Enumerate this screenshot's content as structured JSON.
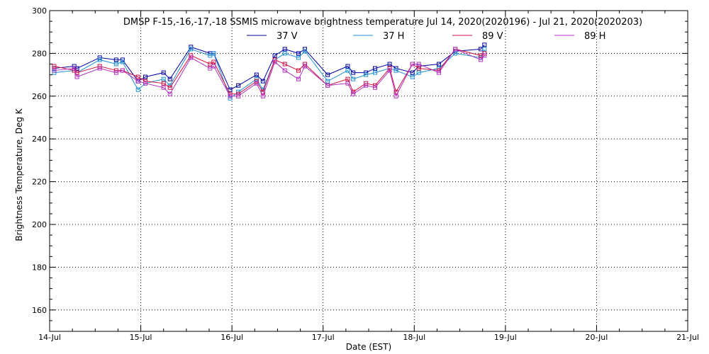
{
  "chart_data": {
    "type": "line",
    "title": "DMSP F-15,-16,-17,-18 SSMIS microwave brightness temperature Jul 14, 2020(2020196) - Jul 21, 2020(2020203)",
    "xlabel": "Date (EST)",
    "ylabel": "Brightness Temperature, Deg K",
    "xlim": [
      0,
      7
    ],
    "ylim": [
      150,
      300
    ],
    "x_ticks": [
      0,
      1,
      2,
      3,
      4,
      5,
      6,
      7
    ],
    "x_tick_labels": [
      "14-Jul",
      "15-Jul",
      "16-Jul",
      "17-Jul",
      "18-Jul",
      "19-Jul",
      "20-Jul",
      "21-Jul"
    ],
    "y_ticks": [
      160,
      180,
      200,
      220,
      240,
      260,
      280,
      300
    ],
    "grid": true,
    "legend_position": "top-center",
    "x": [
      0.05,
      0.27,
      0.3,
      0.55,
      0.73,
      0.8,
      0.97,
      1.05,
      1.25,
      1.32,
      1.55,
      1.76,
      1.8,
      1.98,
      2.07,
      2.27,
      2.34,
      2.47,
      2.58,
      2.73,
      2.8,
      3.05,
      3.27,
      3.33,
      3.47,
      3.57,
      3.73,
      3.8,
      3.98,
      4.05,
      4.27,
      4.45,
      4.73,
      4.77
    ],
    "series": [
      {
        "name": "37 V",
        "color": "#0000a0",
        "values": [
          273,
          274,
          273,
          278,
          277,
          277,
          267,
          269,
          271,
          268,
          283,
          280,
          280,
          263,
          265,
          270,
          267,
          279,
          282,
          280,
          282,
          270,
          274,
          271,
          271,
          273,
          275,
          273,
          271,
          274,
          275,
          281,
          282,
          284
        ]
      },
      {
        "name": "37 H",
        "color": "#1e90d0",
        "values": [
          271,
          272,
          271,
          277,
          275,
          276,
          263,
          266,
          268,
          265,
          282,
          279,
          280,
          259,
          262,
          268,
          263,
          277,
          280,
          278,
          281,
          267,
          272,
          268,
          270,
          271,
          273,
          272,
          269,
          271,
          273,
          280,
          278,
          282
        ]
      },
      {
        "name": "89 V",
        "color": "#d01040",
        "values": [
          274,
          272,
          271,
          274,
          272,
          272,
          269,
          267,
          266,
          264,
          279,
          275,
          276,
          261,
          261,
          267,
          262,
          277,
          275,
          272,
          275,
          265,
          268,
          262,
          266,
          265,
          273,
          262,
          275,
          273,
          272,
          282,
          279,
          280
        ]
      },
      {
        "name": "89 H",
        "color": "#b030c0",
        "values": [
          272,
          273,
          269,
          273,
          271,
          272,
          267,
          266,
          264,
          261,
          278,
          273,
          274,
          260,
          260,
          266,
          260,
          276,
          272,
          268,
          274,
          265,
          266,
          261,
          265,
          264,
          272,
          260,
          275,
          275,
          271,
          282,
          277,
          279
        ]
      }
    ]
  }
}
